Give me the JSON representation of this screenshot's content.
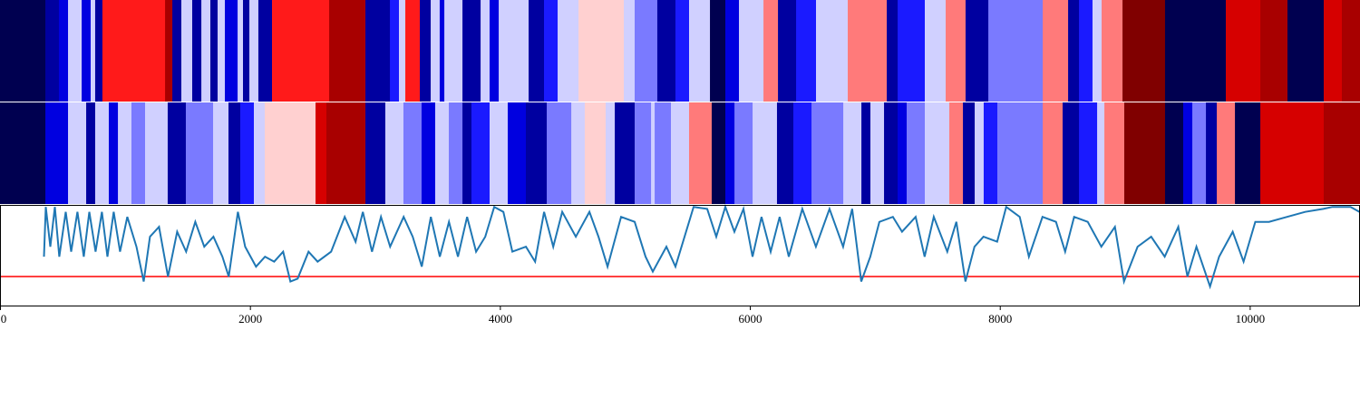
{
  "chart_data": [
    {
      "type": "strip",
      "colormap": [
        "#000050",
        "#0000a0",
        "#0000e0",
        "#1a1aff",
        "#7a7aff",
        "#d0d0ff",
        "#ffd0d0",
        "#ff7a7a",
        "#ff1a1a",
        "#d60000",
        "#a80000",
        "#800000"
      ],
      "xlim": [
        0,
        10875
      ],
      "edges": [
        0,
        363,
        471,
        544,
        653,
        725,
        761,
        819,
        1320,
        1378,
        1450,
        1537,
        1610,
        1682,
        1740,
        1798,
        1900,
        1943,
        1994,
        2066,
        2175,
        2632,
        2922,
        3118,
        3190,
        3241,
        3357,
        3444,
        3516,
        3553,
        3698,
        3843,
        3915,
        3988,
        4227,
        4350,
        4459,
        4626,
        4988,
        5075,
        5256,
        5401,
        5510,
        5677,
        5800,
        5909,
        6105,
        6221,
        6366,
        6525,
        6779,
        7091,
        7178,
        7395,
        7562,
        7721,
        7903,
        8338,
        8541,
        8628,
        8736,
        8809,
        8976,
        9316,
        9802,
        10078,
        10295,
        10585,
        10730,
        10875
      ],
      "values": [
        1,
        2,
        3,
        6,
        3,
        6,
        2,
        9,
        11,
        2,
        6,
        2,
        6,
        2,
        6,
        3,
        6,
        2,
        6,
        2,
        9,
        11,
        2,
        4,
        6,
        9,
        2,
        6,
        3,
        6,
        2,
        6,
        3,
        6,
        2,
        4,
        6,
        7,
        6,
        5,
        2,
        4,
        6,
        1,
        3,
        6,
        8,
        2,
        4,
        6,
        8,
        2,
        4,
        6,
        8,
        2,
        5,
        8,
        2,
        4,
        6,
        8,
        12,
        1,
        10,
        11,
        1,
        10,
        11
      ]
    },
    {
      "type": "strip",
      "colormap": [
        "#000050",
        "#0000a0",
        "#0000e0",
        "#1a1aff",
        "#7a7aff",
        "#d0d0ff",
        "#ffd0d0",
        "#ff7a7a",
        "#ff1a1a",
        "#d60000",
        "#a80000",
        "#800000"
      ],
      "xlim": [
        0,
        10875
      ],
      "edges": [
        0,
        363,
        544,
        689,
        761,
        870,
        943,
        1051,
        1160,
        1341,
        1486,
        1704,
        1827,
        1921,
        2030,
        2117,
        2523,
        2610,
        2922,
        3081,
        3226,
        3371,
        3480,
        3589,
        3698,
        3770,
        3915,
        4060,
        4205,
        4372,
        4568,
        4676,
        4843,
        4916,
        5075,
        5206,
        5235,
        5365,
        5510,
        5691,
        5800,
        5873,
        6018,
        6213,
        6344,
        6489,
        6743,
        6888,
        6960,
        7069,
        7178,
        7250,
        7395,
        7591,
        7700,
        7794,
        7866,
        7975,
        8338,
        8497,
        8628,
        8773,
        8831,
        8990,
        9316,
        9461,
        9534,
        9643,
        9730,
        9875,
        10078,
        10585,
        10875
      ],
      "values": [
        1,
        3,
        6,
        2,
        6,
        3,
        6,
        5,
        6,
        2,
        5,
        6,
        2,
        4,
        6,
        7,
        10,
        11,
        2,
        6,
        5,
        3,
        6,
        5,
        2,
        4,
        6,
        3,
        2,
        5,
        6,
        7,
        6,
        2,
        5,
        6,
        5,
        6,
        8,
        1,
        3,
        5,
        6,
        2,
        4,
        5,
        6,
        2,
        6,
        2,
        3,
        5,
        6,
        8,
        2,
        6,
        4,
        5,
        8,
        2,
        4,
        6,
        8,
        12,
        1,
        3,
        5,
        2,
        8,
        1,
        10,
        11
      ]
    },
    {
      "type": "line",
      "color": "#1f77b4",
      "threshold": 0.3,
      "threshold_color": "#ff0000",
      "xlim": [
        0,
        10875
      ],
      "ylim": [
        0,
        1.02
      ],
      "xticks": [
        0,
        2000,
        4000,
        6000,
        8000,
        10000
      ],
      "x": [
        348,
        363,
        399,
        435,
        471,
        522,
        566,
        616,
        667,
        711,
        761,
        812,
        856,
        906,
        957,
        1015,
        1088,
        1146,
        1196,
        1269,
        1341,
        1414,
        1486,
        1559,
        1631,
        1704,
        1776,
        1827,
        1900,
        1958,
        2045,
        2117,
        2190,
        2262,
        2320,
        2378,
        2465,
        2538,
        2646,
        2755,
        2842,
        2900,
        2973,
        3045,
        3118,
        3226,
        3299,
        3371,
        3444,
        3516,
        3589,
        3661,
        3734,
        3806,
        3879,
        3951,
        4024,
        4096,
        4205,
        4278,
        4350,
        4423,
        4495,
        4604,
        4713,
        4785,
        4858,
        4966,
        5075,
        5162,
        5220,
        5329,
        5401,
        5546,
        5655,
        5728,
        5800,
        5873,
        5945,
        6018,
        6090,
        6163,
        6235,
        6308,
        6416,
        6525,
        6634,
        6743,
        6815,
        6888,
        6960,
        7033,
        7141,
        7214,
        7323,
        7395,
        7468,
        7576,
        7649,
        7721,
        7794,
        7866,
        7975,
        8048,
        8156,
        8229,
        8338,
        8446,
        8519,
        8591,
        8700,
        8809,
        8918,
        8990,
        9099,
        9208,
        9316,
        9425,
        9498,
        9570,
        9679,
        9751,
        9860,
        9947,
        10041,
        10150,
        10295,
        10440,
        10585,
        10658,
        10803,
        10875
      ],
      "values": [
        0.5,
        1,
        0.6,
        1,
        0.5,
        0.95,
        0.55,
        0.95,
        0.5,
        0.95,
        0.55,
        0.95,
        0.5,
        0.95,
        0.55,
        0.9,
        0.6,
        0.25,
        0.7,
        0.8,
        0.3,
        0.75,
        0.55,
        0.85,
        0.6,
        0.7,
        0.5,
        0.3,
        0.95,
        0.6,
        0.4,
        0.5,
        0.45,
        0.55,
        0.25,
        0.28,
        0.55,
        0.45,
        0.55,
        0.9,
        0.65,
        0.95,
        0.55,
        0.9,
        0.6,
        0.9,
        0.7,
        0.4,
        0.9,
        0.5,
        0.85,
        0.5,
        0.9,
        0.55,
        0.7,
        1,
        0.95,
        0.55,
        0.6,
        0.45,
        0.95,
        0.6,
        0.95,
        0.7,
        0.95,
        0.7,
        0.4,
        0.9,
        0.85,
        0.5,
        0.35,
        0.6,
        0.4,
        1,
        0.98,
        0.7,
        1,
        0.75,
        0.98,
        0.5,
        0.9,
        0.55,
        0.9,
        0.5,
        0.98,
        0.6,
        0.98,
        0.6,
        0.98,
        0.25,
        0.5,
        0.85,
        0.9,
        0.75,
        0.9,
        0.5,
        0.9,
        0.55,
        0.85,
        0.25,
        0.6,
        0.7,
        0.65,
        1,
        0.9,
        0.5,
        0.9,
        0.85,
        0.55,
        0.9,
        0.85,
        0.6,
        0.8,
        0.25,
        0.6,
        0.7,
        0.5,
        0.8,
        0.3,
        0.6,
        0.2,
        0.5,
        0.75,
        0.45,
        0.85,
        0.85,
        0.9,
        0.95,
        0.98,
        1,
        1,
        0.95
      ]
    }
  ]
}
